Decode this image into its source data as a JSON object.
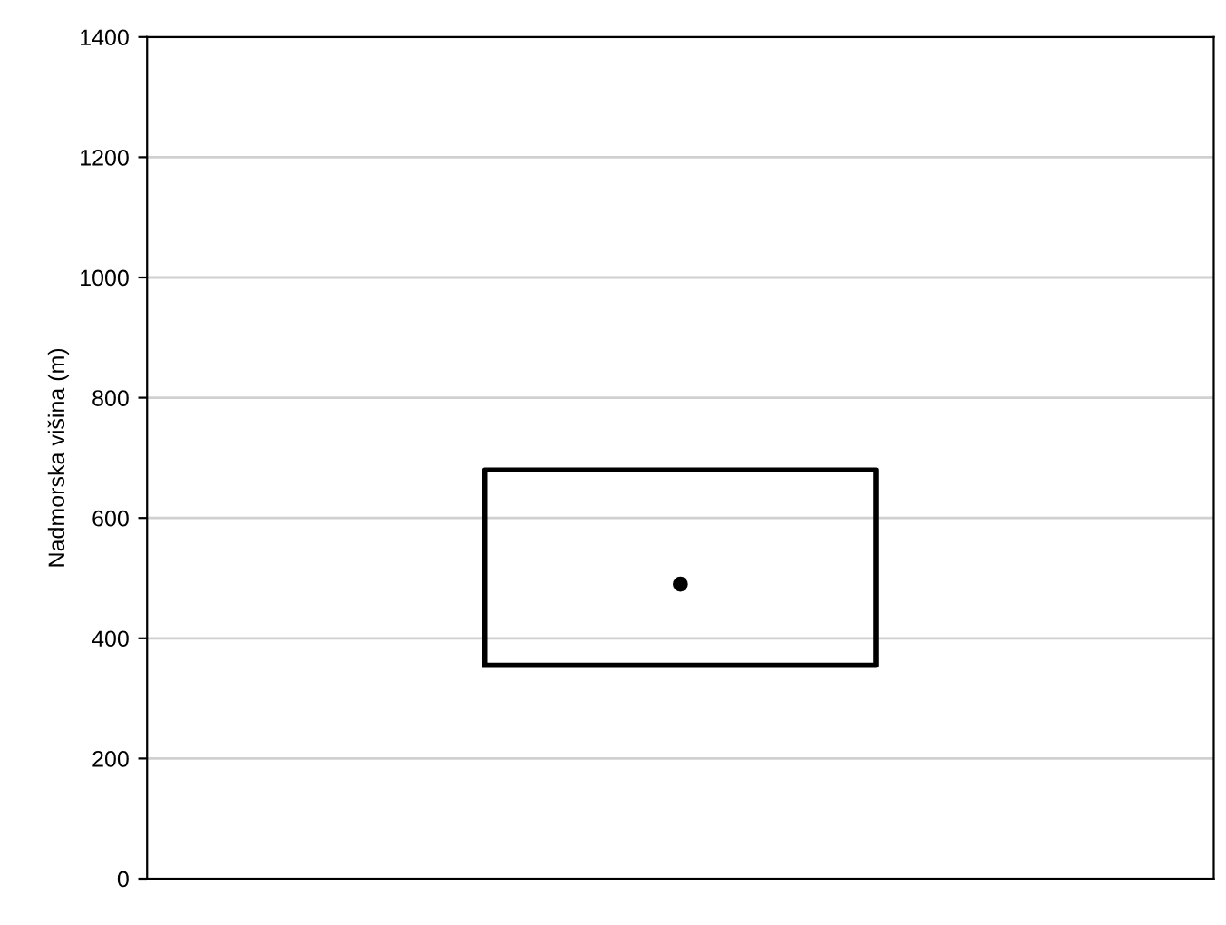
{
  "chart_data": {
    "type": "box",
    "ylabel": "Nadmorska višina (m)",
    "categories": [
      null
    ],
    "boxes": [
      {
        "low": 355,
        "q1": 355,
        "median": 490,
        "q3": 680,
        "high": 680
      }
    ],
    "ylim": [
      0,
      1400
    ],
    "yticks": [
      0,
      200,
      400,
      600,
      800,
      1000,
      1200,
      1400
    ],
    "grid": "y"
  }
}
